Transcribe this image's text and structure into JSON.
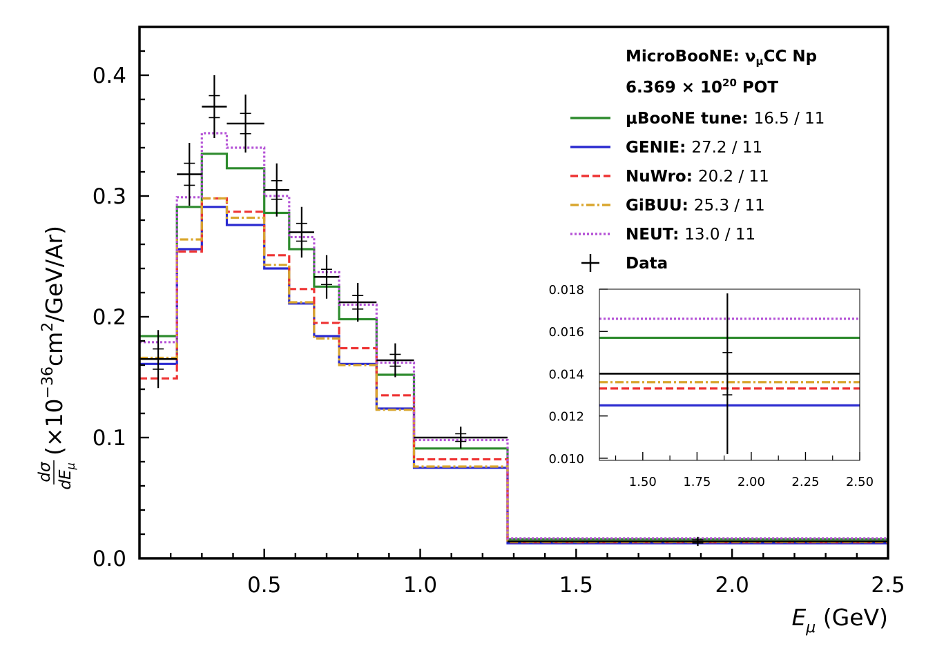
{
  "chart_data": {
    "type": "line",
    "step": true,
    "title": "",
    "experiment_label": "MicroBooNE",
    "channel_label": "ν",
    "channel_sub": "μ",
    "channel_suffix": "CC Np",
    "pot_mantissa": "6.369 × 10",
    "pot_exponent": "20",
    "pot_suffix": " POT",
    "xlabel_main": "E",
    "xlabel_sub": "μ",
    "xlabel_unit": " (GeV)",
    "ylabel_frac_num": "dσ",
    "ylabel_frac_den": "dE",
    "ylabel_frac_den_sub": "μ",
    "ylabel_rest": "(×10",
    "ylabel_exp": "−36",
    "ylabel_units": "cm",
    "ylabel_units_exp": "2",
    "ylabel_units_tail": "/GeV/Ar)",
    "xlim": [
      0.1,
      2.5
    ],
    "ylim": [
      0.0,
      0.44
    ],
    "xticks": [
      0.5,
      1.0,
      1.5,
      2.0,
      2.5
    ],
    "xtick_labels": [
      "0.5",
      "1.0",
      "1.5",
      "2.0",
      "2.5"
    ],
    "yticks": [
      0.0,
      0.1,
      0.2,
      0.3,
      0.4
    ],
    "ytick_labels": [
      "0.0",
      "0.1",
      "0.2",
      "0.3",
      "0.4"
    ],
    "bin_edges": [
      0.1,
      0.22,
      0.3,
      0.38,
      0.5,
      0.58,
      0.66,
      0.74,
      0.86,
      0.98,
      1.28,
      2.5
    ],
    "series": [
      {
        "name": "μBooNE tune",
        "chi2": "16.5 / 11",
        "color": "#2e8b2e",
        "style": "solid",
        "values": [
          0.184,
          0.291,
          0.335,
          0.323,
          0.286,
          0.256,
          0.225,
          0.198,
          0.152,
          0.091,
          0.0157
        ]
      },
      {
        "name": "GENIE",
        "chi2": "27.2 / 11",
        "color": "#2b2bd0",
        "style": "solid",
        "values": [
          0.161,
          0.256,
          0.291,
          0.276,
          0.24,
          0.211,
          0.184,
          0.161,
          0.124,
          0.075,
          0.0125
        ]
      },
      {
        "name": "NuWro",
        "chi2": "20.2 / 11",
        "color": "#ee3333",
        "style": "dashed",
        "values": [
          0.149,
          0.254,
          0.298,
          0.287,
          0.251,
          0.223,
          0.195,
          0.174,
          0.135,
          0.082,
          0.0133
        ]
      },
      {
        "name": "GiBUU",
        "chi2": "25.3 / 11",
        "color": "#d9a62e",
        "style": "dashdot",
        "values": [
          0.166,
          0.264,
          0.298,
          0.282,
          0.243,
          0.212,
          0.182,
          0.16,
          0.123,
          0.076,
          0.0136
        ]
      },
      {
        "name": "NEUT",
        "chi2": "13.0 / 11",
        "color": "#b452d6",
        "style": "dotted",
        "values": [
          0.179,
          0.299,
          0.352,
          0.34,
          0.3,
          0.266,
          0.237,
          0.21,
          0.162,
          0.098,
          0.0166
        ]
      }
    ],
    "data": {
      "name": "Data",
      "x": [
        0.16,
        0.26,
        0.34,
        0.44,
        0.54,
        0.62,
        0.7,
        0.8,
        0.92,
        1.13,
        1.89
      ],
      "xerr_low": [
        0.06,
        0.04,
        0.04,
        0.06,
        0.04,
        0.04,
        0.04,
        0.06,
        0.06,
        0.15,
        0.61
      ],
      "xerr_high": [
        0.06,
        0.04,
        0.04,
        0.06,
        0.04,
        0.04,
        0.04,
        0.06,
        0.06,
        0.15,
        0.61
      ],
      "y": [
        0.165,
        0.318,
        0.374,
        0.36,
        0.305,
        0.27,
        0.233,
        0.212,
        0.164,
        0.1,
        0.014
      ],
      "yerr": [
        0.024,
        0.026,
        0.026,
        0.024,
        0.022,
        0.021,
        0.018,
        0.016,
        0.014,
        0.009,
        0.0038
      ]
    },
    "legend_position": "top-right",
    "inset": {
      "xlim": [
        1.3,
        2.5
      ],
      "ylim": [
        0.0099,
        0.018
      ],
      "xticks": [
        1.5,
        1.75,
        2.0,
        2.25,
        2.5
      ],
      "xtick_labels": [
        "1.50",
        "1.75",
        "2.00",
        "2.25",
        "2.50"
      ],
      "yticks": [
        0.01,
        0.012,
        0.014,
        0.016,
        0.018
      ],
      "ytick_labels": [
        "0.010",
        "0.012",
        "0.014",
        "0.016",
        "0.018"
      ]
    }
  }
}
